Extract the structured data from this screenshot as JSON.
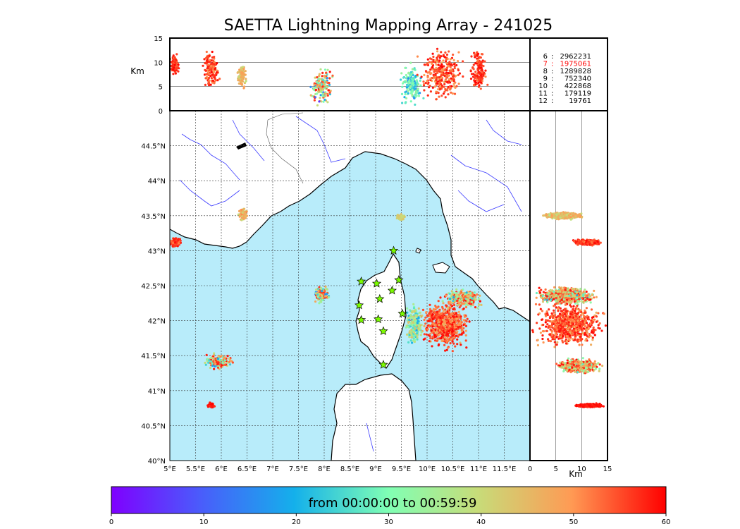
{
  "title": "SAETTA Lightning Mapping Array - 241025",
  "counts_table": [
    {
      "station_count": "6",
      "sources": "2962231",
      "color": "#000000"
    },
    {
      "station_count": "7",
      "sources": "1975061",
      "color": "#ff0000"
    },
    {
      "station_count": "8",
      "sources": "1289828",
      "color": "#000000"
    },
    {
      "station_count": "9",
      "sources": "752340",
      "color": "#000000"
    },
    {
      "station_count": "10",
      "sources": "422868",
      "color": "#000000"
    },
    {
      "station_count": "11",
      "sources": "179119",
      "color": "#000000"
    },
    {
      "station_count": "12",
      "sources": "19761",
      "color": "#000000"
    }
  ],
  "colorbar": {
    "label": "from 00:00:00 to 00:59:59",
    "ticks": [
      0,
      10,
      20,
      30,
      40,
      50,
      60
    ],
    "range": [
      0,
      60
    ]
  },
  "colors": {
    "sea": "#b8ecfa",
    "land": "#ffffff",
    "coast": "#000000",
    "rivers": "#3b3bff",
    "borders": "#555555",
    "station_fill": "#7cfc00",
    "grid": "#333333"
  },
  "chart_data": {
    "type": "scatter",
    "colormap": "rainbow",
    "map_extent": {
      "lon": [
        5,
        12
      ],
      "lat": [
        40,
        45
      ]
    },
    "lon_ticks": [
      {
        "value": 5,
        "label": "5°E"
      },
      {
        "value": 5.5,
        "label": "5.5°E"
      },
      {
        "value": 6,
        "label": "6°E"
      },
      {
        "value": 6.5,
        "label": "6.5°E"
      },
      {
        "value": 7,
        "label": "7°E"
      },
      {
        "value": 7.5,
        "label": "7.5°E"
      },
      {
        "value": 8,
        "label": "8°E"
      },
      {
        "value": 8.5,
        "label": "8.5°E"
      },
      {
        "value": 9,
        "label": "9°E"
      },
      {
        "value": 9.5,
        "label": "9.5°E"
      },
      {
        "value": 10,
        "label": "10°E"
      },
      {
        "value": 10.5,
        "label": "10.5°E"
      },
      {
        "value": 11,
        "label": "11°E"
      },
      {
        "value": 11.5,
        "label": "11.5°E"
      }
    ],
    "lat_ticks": [
      {
        "value": 40,
        "label": "40°N"
      },
      {
        "value": 40.5,
        "label": "40.5°N"
      },
      {
        "value": 41,
        "label": "41°N"
      },
      {
        "value": 41.5,
        "label": "41.5°N"
      },
      {
        "value": 42,
        "label": "42°N"
      },
      {
        "value": 42.5,
        "label": "42.5°N"
      },
      {
        "value": 43,
        "label": "43°N"
      },
      {
        "value": 43.5,
        "label": "43.5°N"
      },
      {
        "value": 44,
        "label": "44°N"
      },
      {
        "value": 44.5,
        "label": "44.5°N"
      }
    ],
    "alt_panel_top": {
      "ylabel": "Km",
      "ylim": [
        0,
        15
      ],
      "ticks": [
        0,
        5,
        10,
        15
      ]
    },
    "alt_panel_right": {
      "xlabel": "Km",
      "xlim": [
        0,
        15
      ],
      "ticks": [
        0,
        5,
        10,
        15
      ]
    },
    "stations": [
      {
        "lon": 9.35,
        "lat": 43.0
      },
      {
        "lon": 8.72,
        "lat": 42.56
      },
      {
        "lon": 9.02,
        "lat": 42.53
      },
      {
        "lon": 9.45,
        "lat": 42.58
      },
      {
        "lon": 9.32,
        "lat": 42.43
      },
      {
        "lon": 9.08,
        "lat": 42.31
      },
      {
        "lon": 8.68,
        "lat": 42.22
      },
      {
        "lon": 9.52,
        "lat": 42.1
      },
      {
        "lon": 8.72,
        "lat": 42.01
      },
      {
        "lon": 9.05,
        "lat": 42.02
      },
      {
        "lon": 9.15,
        "lat": 41.85
      },
      {
        "lon": 9.15,
        "lat": 41.37
      }
    ],
    "clusters": [
      {
        "lon": 5.1,
        "lat": 43.12,
        "rx": 0.18,
        "ry": 0.07,
        "t0": 50,
        "t1": 60
      },
      {
        "lon": 6.42,
        "lat": 43.52,
        "rx": 0.1,
        "ry": 0.1,
        "t0": 38,
        "t1": 52
      },
      {
        "lon": 9.48,
        "lat": 43.48,
        "rx": 0.1,
        "ry": 0.05,
        "t0": 36,
        "t1": 44
      },
      {
        "lon": 7.95,
        "lat": 42.37,
        "rx": 0.18,
        "ry": 0.14,
        "t0": 5,
        "t1": 60
      },
      {
        "lon": 5.95,
        "lat": 41.42,
        "rx": 0.32,
        "ry": 0.13,
        "t0": 15,
        "t1": 60
      },
      {
        "lon": 5.8,
        "lat": 40.79,
        "rx": 0.08,
        "ry": 0.05,
        "t0": 56,
        "t1": 60
      },
      {
        "lon": 10.35,
        "lat": 41.95,
        "rx": 0.55,
        "ry": 0.42,
        "t0": 45,
        "t1": 60
      },
      {
        "lon": 10.7,
        "lat": 42.32,
        "rx": 0.45,
        "ry": 0.16,
        "t0": 18,
        "t1": 60
      },
      {
        "lon": 9.75,
        "lat": 41.95,
        "rx": 0.2,
        "ry": 0.35,
        "t0": 15,
        "t1": 45
      }
    ],
    "profile_top": [
      {
        "lon": 5.1,
        "alt": 9.5,
        "rx": 0.1,
        "ry": 2.5,
        "t0": 50,
        "t1": 60
      },
      {
        "lon": 5.8,
        "alt": 8.5,
        "rx": 0.2,
        "ry": 4.5,
        "t0": 48,
        "t1": 60
      },
      {
        "lon": 6.4,
        "alt": 7.0,
        "rx": 0.1,
        "ry": 3.0,
        "t0": 38,
        "t1": 50
      },
      {
        "lon": 7.95,
        "alt": 5.0,
        "rx": 0.25,
        "ry": 4.5,
        "t0": 5,
        "t1": 60
      },
      {
        "lon": 9.7,
        "alt": 5.5,
        "rx": 0.25,
        "ry": 5.0,
        "t0": 15,
        "t1": 35
      },
      {
        "lon": 10.3,
        "alt": 7.5,
        "rx": 0.55,
        "ry": 6.5,
        "t0": 45,
        "t1": 60
      },
      {
        "lon": 11.0,
        "alt": 8.5,
        "rx": 0.2,
        "ry": 5.5,
        "t0": 50,
        "t1": 60
      }
    ],
    "profile_right": [
      {
        "lat": 43.12,
        "alt": 11.0,
        "rx": 3.0,
        "ry": 0.05,
        "t0": 50,
        "t1": 60
      },
      {
        "lat": 43.5,
        "alt": 6.5,
        "rx": 4.5,
        "ry": 0.06,
        "t0": 36,
        "t1": 50
      },
      {
        "lat": 42.35,
        "alt": 7.0,
        "rx": 6.5,
        "ry": 0.15,
        "t0": 18,
        "t1": 60
      },
      {
        "lat": 41.95,
        "alt": 7.5,
        "rx": 7.5,
        "ry": 0.35,
        "t0": 45,
        "t1": 60
      },
      {
        "lat": 41.35,
        "alt": 9.5,
        "rx": 5.0,
        "ry": 0.12,
        "t0": 25,
        "t1": 60
      },
      {
        "lat": 40.79,
        "alt": 11.5,
        "rx": 3.0,
        "ry": 0.03,
        "t0": 56,
        "t1": 60
      }
    ]
  }
}
